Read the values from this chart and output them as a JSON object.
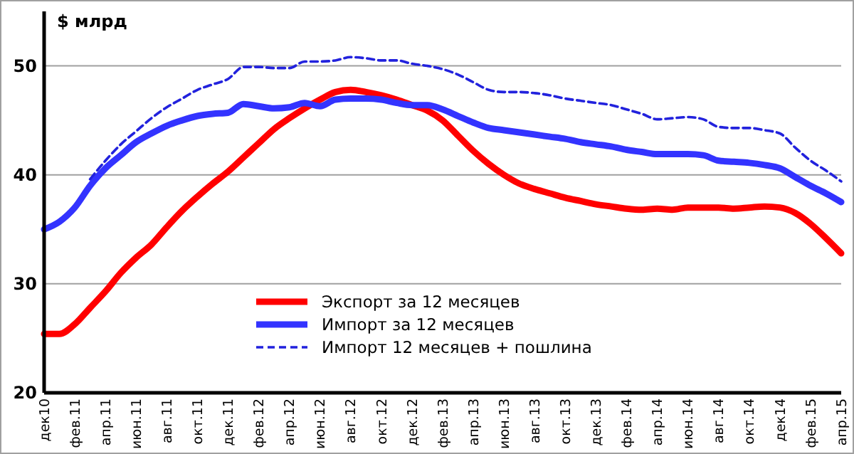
{
  "chart_data": {
    "type": "line",
    "ylabel": "$ млрд",
    "categories": [
      "дек10",
      null,
      "фев.11",
      null,
      "апр.11",
      null,
      "июн.11",
      null,
      "авг.11",
      null,
      "окт.11",
      null,
      "дек.11",
      null,
      "фев.12",
      null,
      "апр.12",
      null,
      "июн.12",
      null,
      "авг.12",
      null,
      "окт.12",
      null,
      "дек.12",
      null,
      "фев.13",
      null,
      "апр.13",
      null,
      "июн.13",
      null,
      "авг.13",
      null,
      "окт.13",
      null,
      "дек.13",
      null,
      "фев.14",
      null,
      "апр.14",
      null,
      "июн.14",
      null,
      "авг.14",
      null,
      "окт.14",
      null,
      "дек14",
      null,
      "фев.15",
      null,
      "апр.15"
    ],
    "series": [
      {
        "name": "Экспорт за 12 месяцев",
        "color": "#ff0000",
        "line_style": "solid",
        "values": [
          25.4,
          25.4,
          26.3,
          27.8,
          29.3,
          31.0,
          32.4,
          33.6,
          35.2,
          36.7,
          38.0,
          39.2,
          40.3,
          41.6,
          42.9,
          44.2,
          45.2,
          46.1,
          46.9,
          47.6,
          47.8,
          47.6,
          47.3,
          46.9,
          46.4,
          45.9,
          45.0,
          43.6,
          42.2,
          41.0,
          40.0,
          39.2,
          38.7,
          38.3,
          37.9,
          37.6,
          37.3,
          37.1,
          36.9,
          36.8,
          36.9,
          36.8,
          37.0,
          37.0,
          37.0,
          36.9,
          37.0,
          37.1,
          37.0,
          36.5,
          35.5,
          34.2,
          32.8
        ]
      },
      {
        "name": "Импорт за 12 месяцев",
        "color": "#3333ff",
        "line_style": "solid",
        "values": [
          35.0,
          35.7,
          37.0,
          39.0,
          40.6,
          41.8,
          43.0,
          43.8,
          44.5,
          45.0,
          45.4,
          45.6,
          45.7,
          46.5,
          46.3,
          46.1,
          46.2,
          46.6,
          46.3,
          46.9,
          47.0,
          47.0,
          46.9,
          46.6,
          46.4,
          46.4,
          46.0,
          45.4,
          44.8,
          44.3,
          44.1,
          43.9,
          43.7,
          43.5,
          43.3,
          43.0,
          42.8,
          42.6,
          42.3,
          42.1,
          41.9,
          41.9,
          41.9,
          41.8,
          41.3,
          41.2,
          41.1,
          40.9,
          40.6,
          39.8,
          39.0,
          38.3,
          37.5
        ]
      },
      {
        "name": "Импорт 12 месяцев + пошлина",
        "color": "#2222dd",
        "line_style": "dashed",
        "values": [
          null,
          null,
          null,
          39.6,
          41.3,
          42.8,
          44.0,
          45.2,
          46.2,
          47.0,
          47.8,
          48.3,
          48.8,
          49.9,
          49.9,
          49.8,
          49.8,
          50.4,
          50.4,
          50.5,
          50.8,
          50.7,
          50.5,
          50.5,
          50.2,
          50.0,
          49.7,
          49.2,
          48.5,
          47.8,
          47.6,
          47.6,
          47.5,
          47.3,
          47.0,
          46.8,
          46.6,
          46.4,
          46.0,
          45.6,
          45.1,
          45.2,
          45.3,
          45.1,
          44.4,
          44.3,
          44.3,
          44.1,
          43.8,
          42.5,
          41.3,
          40.4,
          39.4
        ]
      }
    ],
    "ylim": [
      20,
      55
    ],
    "yticks": [
      20,
      30,
      40,
      50
    ],
    "grid": "y",
    "legend": "bottom",
    "marker": "none"
  }
}
